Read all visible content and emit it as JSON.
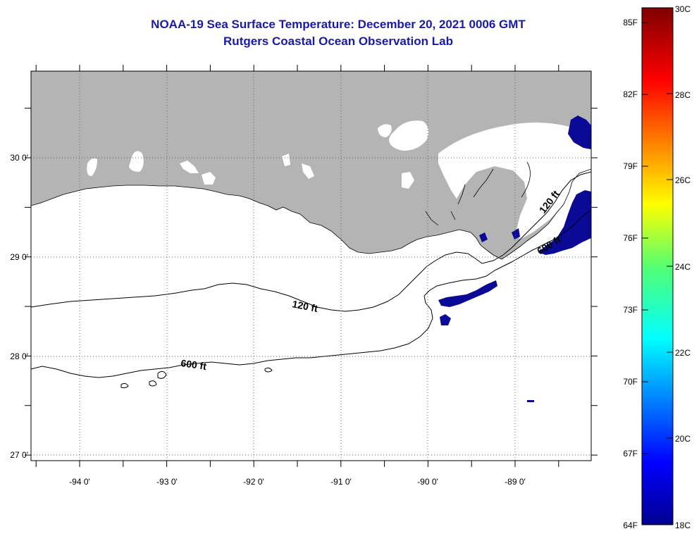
{
  "title": "NOAA-19 Sea Surface Temperature:  December 20, 2021 0006 GMT",
  "subtitle": "Rutgers Coastal Ocean Observation Lab",
  "map": {
    "lon_labels": [
      "-94 0'",
      "-93 0'",
      "-92 0'",
      "-91 0'",
      "-90 0'",
      "-89 0'"
    ],
    "lat_labels": [
      "30 0'",
      "29 0'",
      "28 0'",
      "27 0'"
    ],
    "contour_labels": [
      "120 ft",
      "600 ft",
      "120 ft",
      "600 ft"
    ]
  },
  "colorbar": {
    "fahrenheit_labels": [
      "85F",
      "82F",
      "79F",
      "76F",
      "73F",
      "70F",
      "67F",
      "64F"
    ],
    "celsius_labels": [
      "30C",
      "28C",
      "26C",
      "24C",
      "22C",
      "20C",
      "18C"
    ],
    "min_c": 18,
    "max_c": 30
  },
  "colors": {
    "title": "#1a1aa8",
    "land": "#b4b4b4",
    "cloud": "#ffffff",
    "cold_water": "#0a0a96"
  }
}
